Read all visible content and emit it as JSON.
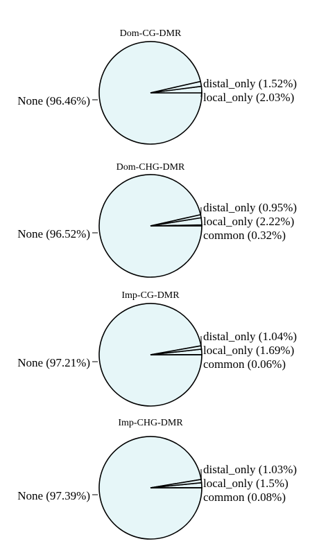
{
  "colors": {
    "fill": "#e6f6f8",
    "stroke": "#000000",
    "background": "#ffffff"
  },
  "chart_data": [
    {
      "type": "pie",
      "title": "Dom-CG-DMR",
      "slices": [
        {
          "name": "None",
          "value": 96.46,
          "label": "None (96.46%)"
        },
        {
          "name": "distal_only",
          "value": 1.52,
          "label": "distal_only (1.52%)"
        },
        {
          "name": "local_only",
          "value": 2.03,
          "label": "local_only (2.03%)"
        }
      ]
    },
    {
      "type": "pie",
      "title": "Dom-CHG-DMR",
      "slices": [
        {
          "name": "None",
          "value": 96.52,
          "label": "None (96.52%)"
        },
        {
          "name": "distal_only",
          "value": 0.95,
          "label": "distal_only (0.95%)"
        },
        {
          "name": "local_only",
          "value": 2.22,
          "label": "local_only (2.22%)"
        },
        {
          "name": "common",
          "value": 0.32,
          "label": "common (0.32%)"
        }
      ]
    },
    {
      "type": "pie",
      "title": "Imp-CG-DMR",
      "slices": [
        {
          "name": "None",
          "value": 97.21,
          "label": "None (97.21%)"
        },
        {
          "name": "distal_only",
          "value": 1.04,
          "label": "distal_only (1.04%)"
        },
        {
          "name": "local_only",
          "value": 1.69,
          "label": "local_only (1.69%)"
        },
        {
          "name": "common",
          "value": 0.06,
          "label": "common (0.06%)"
        }
      ]
    },
    {
      "type": "pie",
      "title": "Imp-CHG-DMR",
      "slices": [
        {
          "name": "None",
          "value": 97.39,
          "label": "None (97.39%)"
        },
        {
          "name": "distal_only",
          "value": 1.03,
          "label": "distal_only (1.03%)"
        },
        {
          "name": "local_only",
          "value": 1.5,
          "label": "local_only (1.5%)"
        },
        {
          "name": "common",
          "value": 0.08,
          "label": "common (0.08%)"
        }
      ]
    }
  ]
}
